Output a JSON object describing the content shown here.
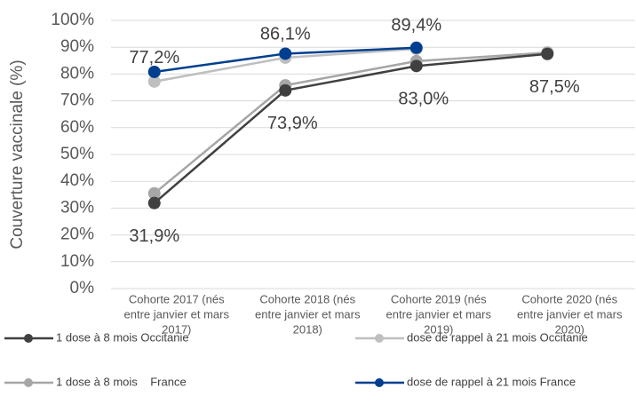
{
  "chart_data": {
    "type": "line",
    "y_label": "Couverture vaccinale (%)",
    "categories": [
      [
        "Cohorte 2017 (nés",
        "entre janvier et mars",
        "2017)"
      ],
      [
        "Cohorte 2018 (nés",
        "entre janvier et mars",
        "2018)"
      ],
      [
        "Cohorte 2019 (nés",
        "entre janvier et mars",
        "2019)"
      ],
      [
        "Cohorte 2020 (nés",
        "entre janvier et mars",
        "2020)"
      ]
    ],
    "series": [
      {
        "name": "1 dose à 8 mois Occitanie",
        "color": "#404040",
        "values": [
          31.9,
          73.9,
          83.0,
          87.5
        ],
        "value_labels": [
          "31,9%",
          "73,9%",
          "83,0%",
          "87,5%"
        ]
      },
      {
        "name": "dose de rappel à 21 mois Occitanie",
        "color": "#bfbfbf",
        "values": [
          77.2,
          86.1,
          89.4,
          null
        ],
        "value_labels": [
          "77,2%",
          "86,1%",
          "89,4%",
          null
        ]
      },
      {
        "name": "1 dose à 8 mois    France",
        "color": "#a6a6a6",
        "values": [
          35.5,
          75.8,
          84.8,
          88.0
        ]
      },
      {
        "name": "dose de rappel à 21 mois France",
        "color": "#003f8f",
        "values": [
          80.8,
          87.6,
          89.8,
          null
        ]
      }
    ],
    "ylim": [
      0,
      100
    ],
    "yticks": [
      {
        "value": 0,
        "label": "0%"
      },
      {
        "value": 10,
        "label": "10%"
      },
      {
        "value": 20,
        "label": "20%"
      },
      {
        "value": 30,
        "label": "30%"
      },
      {
        "value": 40,
        "label": "40%"
      },
      {
        "value": 50,
        "label": "50%"
      },
      {
        "value": 60,
        "label": "60%"
      },
      {
        "value": 70,
        "label": "70%"
      },
      {
        "value": 80,
        "label": "80%"
      },
      {
        "value": 90,
        "label": "90%"
      },
      {
        "value": 100,
        "label": "100%"
      }
    ],
    "grid": true
  }
}
